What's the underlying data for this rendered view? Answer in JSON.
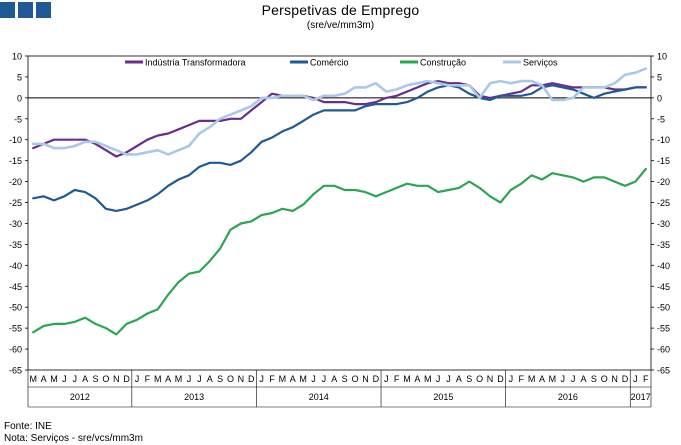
{
  "header": {
    "title": "Perspetivas de Emprego",
    "subtitle": "(sre/ve/mm3m)"
  },
  "footer": {
    "source": "Fonte: INE",
    "note": "Nota: Serviços - sre/vcs/mm3m"
  },
  "colors": {
    "logo": "#1f5a96",
    "grid": "#000000"
  },
  "chart_data": {
    "type": "line",
    "title": "Perspetivas de Emprego",
    "subtitle": "(sre/ve/mm3m)",
    "ylim": [
      -65,
      10
    ],
    "yticks": [
      10,
      5,
      0,
      -5,
      -10,
      -15,
      -20,
      -25,
      -30,
      -35,
      -40,
      -45,
      -50,
      -55,
      -60,
      -65
    ],
    "secondary_y_axis": "mirror of left axis",
    "legend_position": "top",
    "month_labels": [
      "M",
      "A",
      "M",
      "J",
      "J",
      "A",
      "S",
      "O",
      "N",
      "D",
      "J",
      "F",
      "M",
      "A",
      "M",
      "J",
      "J",
      "A",
      "S",
      "O",
      "N",
      "D",
      "J",
      "F",
      "M",
      "A",
      "M",
      "J",
      "J",
      "A",
      "S",
      "O",
      "N",
      "D",
      "J",
      "F",
      "M",
      "A",
      "M",
      "J",
      "J",
      "A",
      "S",
      "O",
      "N",
      "D",
      "J",
      "F",
      "M",
      "A",
      "M",
      "J",
      "J",
      "A",
      "S",
      "O",
      "N",
      "D",
      "J",
      "F"
    ],
    "years": [
      {
        "label": "2012",
        "first_month": 0,
        "count": 10
      },
      {
        "label": "2013",
        "first_month": 10,
        "count": 12
      },
      {
        "label": "2014",
        "first_month": 22,
        "count": 12
      },
      {
        "label": "2015",
        "first_month": 34,
        "count": 12
      },
      {
        "label": "2016",
        "first_month": 46,
        "count": 12
      },
      {
        "label": "2017",
        "first_month": 58,
        "count": 2
      }
    ],
    "series": [
      {
        "name": "Indústria Transformadora",
        "color": "#6b2c91",
        "width": 2.2,
        "values": [
          -12,
          -11,
          -10,
          -10,
          -10,
          -10,
          -11,
          -12.5,
          -14,
          -13,
          -11.5,
          -10,
          -9,
          -8.5,
          -7.5,
          -6.5,
          -5.5,
          -5.5,
          -5.5,
          -5,
          -5,
          -3,
          -1,
          1,
          0.5,
          0.5,
          0.5,
          0,
          -1,
          -1,
          -1,
          -1.5,
          -1.5,
          -1,
          0,
          0.5,
          1.5,
          2.5,
          3.5,
          4,
          3.5,
          3.5,
          3,
          0.5,
          0,
          0.5,
          1,
          1.5,
          3,
          3,
          3.5,
          3,
          2.5,
          2.5,
          2.5,
          2.5,
          2,
          2,
          2.5,
          2.5
        ]
      },
      {
        "name": "Comércio",
        "color": "#1f5a96",
        "width": 2.2,
        "values": [
          -24,
          -23.5,
          -24.5,
          -23.5,
          -22,
          -22.5,
          -24,
          -26.5,
          -27,
          -26.5,
          -25.5,
          -24.5,
          -23,
          -21,
          -19.5,
          -18.5,
          -16.5,
          -15.5,
          -15.5,
          -16,
          -15,
          -13,
          -10.5,
          -9.5,
          -8,
          -7,
          -5.5,
          -4,
          -3,
          -3,
          -3,
          -3,
          -2,
          -1.5,
          -1.5,
          -1.5,
          -1,
          0,
          1.5,
          2.5,
          3,
          2.5,
          1,
          0,
          -0.5,
          0.5,
          0.5,
          0.5,
          1,
          2.5,
          3,
          2.5,
          2,
          1,
          0,
          1,
          1.5,
          2,
          2.5,
          2.5
        ]
      },
      {
        "name": "Construção",
        "color": "#2aa653",
        "width": 2.2,
        "values": [
          -56,
          -54.5,
          -54,
          -54,
          -53.5,
          -52.5,
          -54,
          -55,
          -56.5,
          -54,
          -53,
          -51.5,
          -50.5,
          -47,
          -44,
          -42,
          -41.5,
          -39,
          -36,
          -31.5,
          -30,
          -29.5,
          -28,
          -27.5,
          -26.5,
          -27,
          -25.5,
          -23,
          -21,
          -21,
          -22,
          -22,
          -22.5,
          -23.5,
          -22.5,
          -21.5,
          -20.5,
          -21,
          -21,
          -22.5,
          -22,
          -21.5,
          -20,
          -21.5,
          -23.5,
          -25,
          -22,
          -20.5,
          -18.5,
          -19.5,
          -18,
          -18.5,
          -19,
          -20,
          -19,
          -19,
          -20,
          -21,
          -20,
          -17
        ]
      },
      {
        "name": "Serviços",
        "color": "#a9c8ea",
        "width": 2.6,
        "values": [
          -11,
          -11,
          -12,
          -12,
          -11.5,
          -10.5,
          -10.5,
          -11.5,
          -12.5,
          -13.5,
          -13.5,
          -13,
          -12.5,
          -13.5,
          -12.5,
          -11.5,
          -8.5,
          -7,
          -5,
          -4,
          -3,
          -2,
          0,
          0,
          0.5,
          0.5,
          0.5,
          -0.5,
          0.5,
          0.5,
          1,
          2.5,
          2.5,
          3.5,
          1.5,
          2,
          3,
          3.5,
          4,
          3.5,
          3,
          3,
          3,
          0,
          3.5,
          4,
          3.5,
          4,
          4,
          3,
          -0.5,
          -0.5,
          0,
          2.5,
          2.5,
          2.5,
          3.5,
          5.5,
          6,
          7
        ]
      }
    ]
  }
}
